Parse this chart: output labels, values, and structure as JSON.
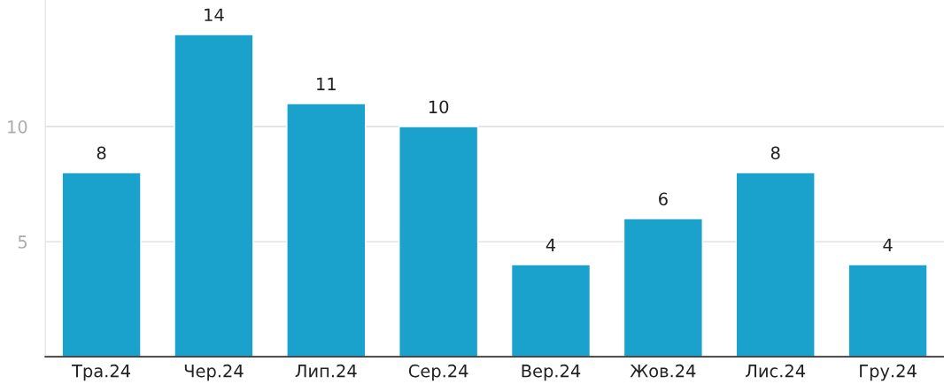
{
  "chart_data": {
    "type": "bar",
    "categories": [
      "Тра.24",
      "Чер.24",
      "Лип.24",
      "Сер.24",
      "Вер.24",
      "Жов.24",
      "Лис.24",
      "Гру.24"
    ],
    "values": [
      8,
      14,
      11,
      10,
      4,
      6,
      8,
      4
    ],
    "color": "#1aa1cc",
    "ylim": [
      0,
      15.5
    ],
    "yticks": [
      5,
      10
    ],
    "grid": "y",
    "data_labels": true,
    "legend": false
  }
}
